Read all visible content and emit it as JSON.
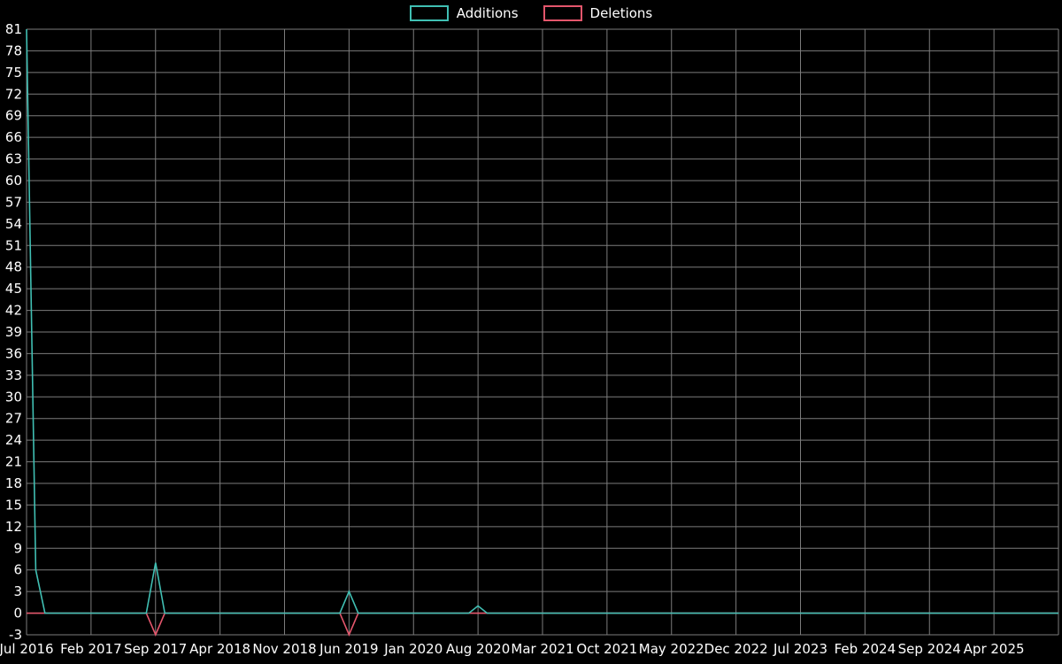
{
  "chart_data": {
    "type": "line",
    "title": "",
    "legend_position": "top-center",
    "grid": true,
    "background_color": "#000000",
    "grid_color": "#7c7c7c",
    "text_color": "#ffffff",
    "x_start": "2016-07",
    "x_end": "2025-11",
    "x_tick_interval_months": 7,
    "x_tick_labels": [
      "Jul 2016",
      "Feb 2017",
      "Sep 2017",
      "Apr 2018",
      "Nov 2018",
      "Jun 2019",
      "Jan 2020",
      "Aug 2020",
      "Mar 2021",
      "Oct 2021",
      "May 2022",
      "Dec 2022",
      "Jul 2023",
      "Feb 2024",
      "Sep 2024",
      "Apr 2025"
    ],
    "ylim": [
      -3,
      81
    ],
    "y_tick_step": 3,
    "series": [
      {
        "name": "Additions",
        "color": "#40bfb3",
        "baseline": 0,
        "nonzero_points": {
          "2016-07": 81,
          "2016-08": 6,
          "2017-09": 7,
          "2019-06": 3,
          "2020-08": 1
        }
      },
      {
        "name": "Deletions",
        "color": "#e4566c",
        "baseline": 0,
        "nonzero_points": {
          "2017-09": -3,
          "2019-06": -3
        }
      }
    ]
  }
}
